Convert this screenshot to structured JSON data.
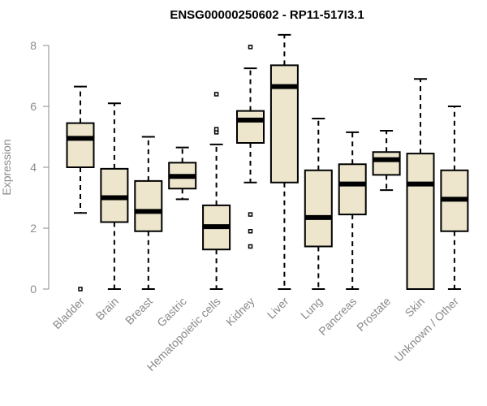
{
  "chart_data": {
    "type": "boxplot",
    "title": "ENSG00000250602 - RP11-517I3.1",
    "xlabel": "",
    "ylabel": "Expression",
    "ylim": [
      0,
      8
    ],
    "yticks": [
      0,
      2,
      4,
      6,
      8
    ],
    "colors": {
      "box_fill": "#ede6cd",
      "box_stroke": "#000000",
      "axis": "#8a8a8a"
    },
    "categories": [
      "Bladder",
      "Brain",
      "Breast",
      "Gastric",
      "Hematopoietic cells",
      "Kidney",
      "Liver",
      "Lung",
      "Pancreas",
      "Prostate",
      "Skin",
      "Unknown / Other"
    ],
    "boxes": [
      {
        "name": "Bladder",
        "low": 2.5,
        "q1": 4.0,
        "median": 4.95,
        "q3": 5.45,
        "high": 6.65,
        "outliers": [
          0.0
        ]
      },
      {
        "name": "Brain",
        "low": 0.0,
        "q1": 2.2,
        "median": 3.0,
        "q3": 3.95,
        "high": 6.1,
        "outliers": []
      },
      {
        "name": "Breast",
        "low": 0.0,
        "q1": 1.9,
        "median": 2.55,
        "q3": 3.55,
        "high": 5.0,
        "outliers": []
      },
      {
        "name": "Gastric",
        "low": 2.95,
        "q1": 3.3,
        "median": 3.7,
        "q3": 4.15,
        "high": 4.65,
        "outliers": []
      },
      {
        "name": "Hematopoietic cells",
        "low": 0.0,
        "q1": 1.3,
        "median": 2.05,
        "q3": 2.75,
        "high": 4.75,
        "outliers": [
          5.15,
          5.25,
          6.4
        ]
      },
      {
        "name": "Kidney",
        "low": 3.5,
        "q1": 4.8,
        "median": 5.55,
        "q3": 5.85,
        "high": 7.25,
        "outliers": [
          1.4,
          1.9,
          2.45,
          7.95
        ]
      },
      {
        "name": "Liver",
        "low": 0.0,
        "q1": 3.5,
        "median": 6.65,
        "q3": 7.35,
        "high": 8.35,
        "outliers": []
      },
      {
        "name": "Lung",
        "low": 0.0,
        "q1": 1.4,
        "median": 2.35,
        "q3": 3.9,
        "high": 5.6,
        "outliers": []
      },
      {
        "name": "Pancreas",
        "low": 0.0,
        "q1": 2.45,
        "median": 3.45,
        "q3": 4.1,
        "high": 5.15,
        "outliers": []
      },
      {
        "name": "Prostate",
        "low": 3.25,
        "q1": 3.75,
        "median": 4.25,
        "q3": 4.5,
        "high": 5.2,
        "outliers": []
      },
      {
        "name": "Skin",
        "low": 0.0,
        "q1": 0.0,
        "median": 3.45,
        "q3": 4.45,
        "high": 6.9,
        "outliers": []
      },
      {
        "name": "Unknown / Other",
        "low": 0.0,
        "q1": 1.9,
        "median": 2.95,
        "q3": 3.9,
        "high": 6.0,
        "outliers": []
      }
    ]
  }
}
